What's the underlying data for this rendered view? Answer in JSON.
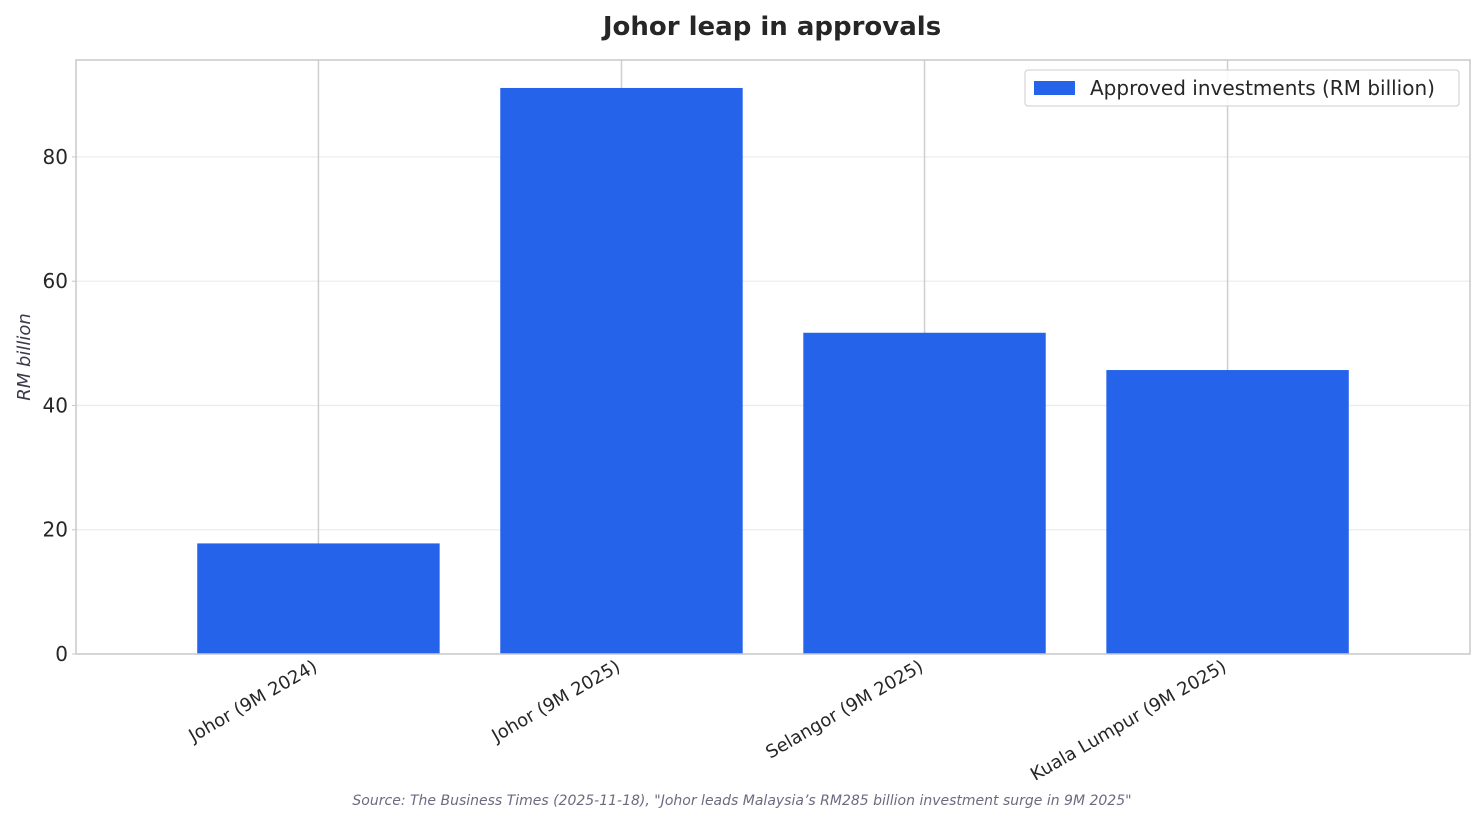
{
  "chart_data": {
    "type": "bar",
    "title": "Johor leap in approvals",
    "xlabel": "",
    "ylabel": "RM billion",
    "categories": [
      "Johor (9M 2024)",
      "Johor (9M 2025)",
      "Selangor (9M 2025)",
      "Kuala Lumpur (9M 2025)"
    ],
    "series": [
      {
        "name": "Approved investments (RM billion)",
        "values": [
          17.8,
          91.1,
          51.7,
          45.7
        ],
        "color": "#2563eb"
      }
    ],
    "ylim": [
      0,
      95.6
    ],
    "yticks": [
      0,
      20,
      40,
      60,
      80
    ],
    "grid": true,
    "legend_position": "top-right",
    "source": "Source: The Business Times (2025-11-18), \"Johor leads Malaysia’s RM285 billion investment surge in 9M 2025\""
  }
}
